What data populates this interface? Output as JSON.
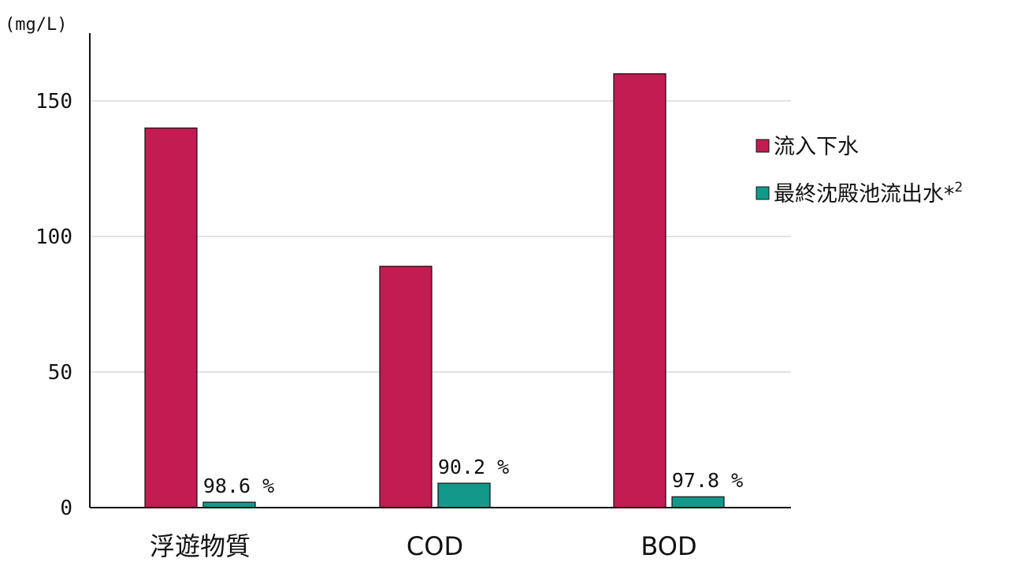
{
  "chart_data": {
    "type": "bar",
    "unit_label": "(mg/L)",
    "categories": [
      "浮遊物質",
      "COD",
      "BOD"
    ],
    "series": [
      {
        "name": "流入下水",
        "color": "#c21c52",
        "values": [
          140,
          89,
          160
        ]
      },
      {
        "name": "最終沈殿池流出水",
        "name_suffix": "*",
        "name_superscript": "2",
        "color": "#12998a",
        "values": [
          2,
          9,
          4
        ]
      }
    ],
    "removal_labels": [
      "98.6 %",
      "90.2 %",
      "97.8 %"
    ],
    "yticks": [
      "0",
      "50",
      "100",
      "150"
    ],
    "ylim": [
      0,
      175
    ],
    "grid": true,
    "legend_position": "right"
  }
}
